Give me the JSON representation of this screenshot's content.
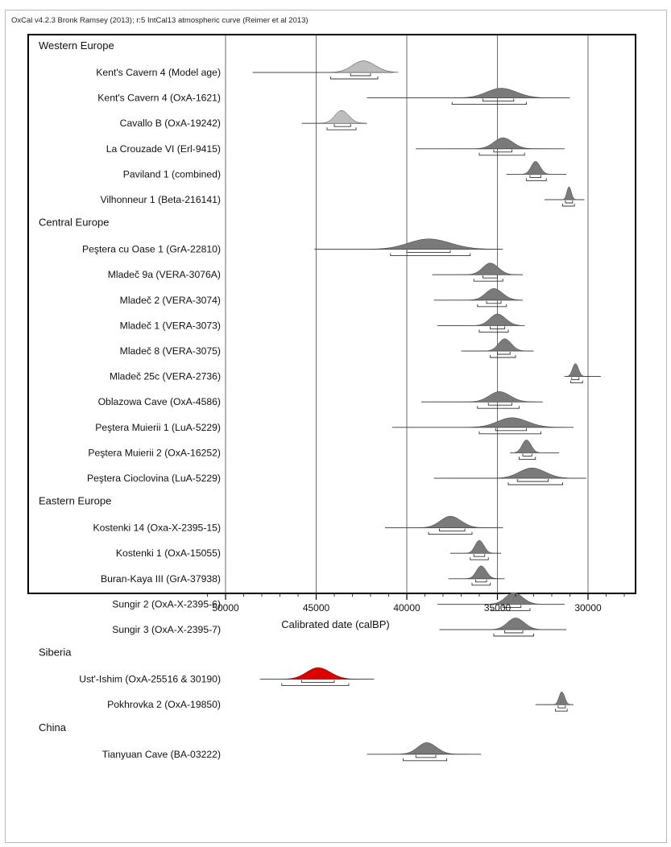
{
  "header": {
    "text": "OxCal v4.2.3 Bronk Ramsey (2013); r:5 IntCal13 atmospheric curve (Reimer et al 2013)"
  },
  "chart_data": {
    "type": "density-ridge",
    "xlabel": "Calibrated date (calBP)",
    "x_reversed": true,
    "xlim": [
      51000,
      27500
    ],
    "xticks": [
      50000,
      45000,
      40000,
      35000,
      30000
    ],
    "grid": true,
    "colors": {
      "default": "#7a7a7a",
      "model": "#bdbdbd",
      "highlight": "#dd0000"
    },
    "groups": [
      {
        "name": "Western Europe",
        "samples": [
          {
            "label": "Kent's Cavern 4 (Model age)",
            "peak": 42400,
            "width": 1150,
            "prior": [
              48500,
              40800
            ],
            "r1": [
              43100,
              42000
            ],
            "r2": [
              44200,
              41600
            ],
            "style": "model",
            "h": 0.9
          },
          {
            "label": "Kent's Cavern 4 (OxA-1621)",
            "peak": 34800,
            "width": 1500,
            "prior": [
              42200,
              31000
            ],
            "r1": [
              35800,
              34100
            ],
            "r2": [
              37500,
              33400
            ],
            "style": "default",
            "h": 0.75
          },
          {
            "label": "Cavallo B (OxA-19242)",
            "peak": 43600,
            "width": 700,
            "prior": [
              45800,
              42200
            ],
            "r1": [
              44000,
              43100
            ],
            "r2": [
              44400,
              42800
            ],
            "style": "model",
            "h": 1.0
          },
          {
            "label": "La Crouzade VI (Erl-9415)",
            "peak": 34700,
            "width": 950,
            "prior": [
              39500,
              31300
            ],
            "r1": [
              35200,
              34200
            ],
            "r2": [
              36000,
              33500
            ],
            "style": "default",
            "h": 0.85
          },
          {
            "label": "Paviland 1 (combined)",
            "peak": 32900,
            "width": 450,
            "prior": [
              34500,
              31200
            ],
            "r1": [
              33200,
              32600
            ],
            "r2": [
              33400,
              32300
            ],
            "style": "default",
            "h": 1.0
          },
          {
            "label": "Vilhonneur 1 (Beta-216141)",
            "peak": 31050,
            "width": 220,
            "prior": [
              32400,
              30200
            ],
            "r1": [
              31250,
              30850
            ],
            "r2": [
              31400,
              30750
            ],
            "style": "default",
            "h": 1.0
          }
        ]
      },
      {
        "name": "Central Europe",
        "samples": [
          {
            "label": "Peştera cu Oase 1 (GrA-22810)",
            "peak": 38800,
            "width": 2100,
            "prior": [
              45100,
              34700
            ],
            "r1": [
              40000,
              37600
            ],
            "r2": [
              40900,
              36500
            ],
            "style": "default",
            "h": 0.8
          },
          {
            "label": "Mladeč 9a (VERA-3076A)",
            "peak": 35400,
            "width": 800,
            "prior": [
              38600,
              33600
            ],
            "r1": [
              35800,
              35000
            ],
            "r2": [
              36300,
              34700
            ],
            "style": "default",
            "h": 0.9
          },
          {
            "label": "Mladeč 2 (VERA-3074)",
            "peak": 35200,
            "width": 850,
            "prior": [
              38500,
              33600
            ],
            "r1": [
              35600,
              34800
            ],
            "r2": [
              36100,
              34500
            ],
            "style": "default",
            "h": 0.9
          },
          {
            "label": "Mladeč 1 (VERA-3073)",
            "peak": 35000,
            "width": 800,
            "prior": [
              38300,
              33500
            ],
            "r1": [
              35400,
              34600
            ],
            "r2": [
              36000,
              34400
            ],
            "style": "default",
            "h": 0.9
          },
          {
            "label": "Mladeč 8 (VERA-3075)",
            "peak": 34600,
            "width": 650,
            "prior": [
              37000,
              33000
            ],
            "r1": [
              35000,
              34300
            ],
            "r2": [
              35400,
              34000
            ],
            "style": "default",
            "h": 0.95
          },
          {
            "label": "Mladeč 25c (VERA-2736)",
            "peak": 30700,
            "width": 300,
            "prior": [
              31300,
              29300
            ],
            "r1": [
              30900,
              30500
            ],
            "r2": [
              30950,
              30300
            ],
            "style": "default",
            "h": 1.0
          },
          {
            "label": "Oblazowa Cave (OxA-4586)",
            "peak": 34900,
            "width": 1050,
            "prior": [
              39200,
              32500
            ],
            "r1": [
              35500,
              34200
            ],
            "r2": [
              36100,
              33800
            ],
            "style": "default",
            "h": 0.8
          },
          {
            "label": "Peştera Muierii 1 (LuA-5229)",
            "peak": 34200,
            "width": 1500,
            "prior": [
              40800,
              30800
            ],
            "r1": [
              35100,
              33400
            ],
            "r2": [
              36000,
              32600
            ],
            "style": "default",
            "h": 0.75
          },
          {
            "label": "Peştera Muierii 2 (OxA-16252)",
            "peak": 33400,
            "width": 450,
            "prior": [
              34300,
              31600
            ],
            "r1": [
              33600,
              33100
            ],
            "r2": [
              33800,
              32900
            ],
            "style": "default",
            "h": 1.0
          },
          {
            "label": "Peştera Cioclovina (LuA-5229)",
            "peak": 33100,
            "width": 1300,
            "prior": [
              38500,
              30100
            ],
            "r1": [
              33900,
              32200
            ],
            "r2": [
              34400,
              31400
            ],
            "style": "default",
            "h": 0.8
          }
        ]
      },
      {
        "name": "Eastern Europe",
        "samples": [
          {
            "label": "Kostenki 14 (Oxa-X-2395-15)",
            "peak": 37600,
            "width": 1050,
            "prior": [
              41200,
              34700
            ],
            "r1": [
              38200,
              36800
            ],
            "r2": [
              38800,
              36400
            ],
            "style": "default",
            "h": 0.9
          },
          {
            "label": "Kostenki 1 (OxA-15055)",
            "peak": 36000,
            "width": 450,
            "prior": [
              37600,
              34800
            ],
            "r1": [
              36300,
              35700
            ],
            "r2": [
              36500,
              35500
            ],
            "style": "default",
            "h": 1.0
          },
          {
            "label": "Buran-Kaya III (GrA-37938)",
            "peak": 35900,
            "width": 500,
            "prior": [
              37700,
              34600
            ],
            "r1": [
              36200,
              35600
            ],
            "r2": [
              36400,
              35400
            ],
            "style": "default",
            "h": 1.0
          },
          {
            "label": "Sungir 2 (OxA-X-2395-6)",
            "peak": 34100,
            "width": 850,
            "prior": [
              38300,
              31300
            ],
            "r1": [
              34700,
              33700
            ],
            "r2": [
              35300,
              33200
            ],
            "style": "default",
            "h": 0.9
          },
          {
            "label": "Sungir 3 (OxA-X-2395-7)",
            "peak": 34000,
            "width": 850,
            "prior": [
              38200,
              31200
            ],
            "r1": [
              34600,
              33600
            ],
            "r2": [
              35200,
              33000
            ],
            "style": "default",
            "h": 0.9
          }
        ]
      },
      {
        "name": "Siberia",
        "samples": [
          {
            "label": "Ust'-Ishim (OxA-25516 & 30190)",
            "peak": 44900,
            "width": 1200,
            "prior": [
              48100,
              41800
            ],
            "r1": [
              45800,
              44000
            ],
            "r2": [
              46900,
              43200
            ],
            "style": "highlight",
            "h": 0.9
          },
          {
            "label": "Pokhrovka 2 (OxA-19850)",
            "peak": 31450,
            "width": 280,
            "prior": [
              32900,
              30800
            ],
            "r1": [
              31650,
              31250
            ],
            "r2": [
              31800,
              31150
            ],
            "style": "default",
            "h": 1.0
          }
        ]
      },
      {
        "name": "China",
        "samples": [
          {
            "label": "Tianyuan Cave (BA-03222)",
            "peak": 38900,
            "width": 950,
            "prior": [
              42200,
              35900
            ],
            "r1": [
              39500,
              38400
            ],
            "r2": [
              40200,
              37800
            ],
            "style": "default",
            "h": 0.9
          }
        ]
      }
    ]
  }
}
